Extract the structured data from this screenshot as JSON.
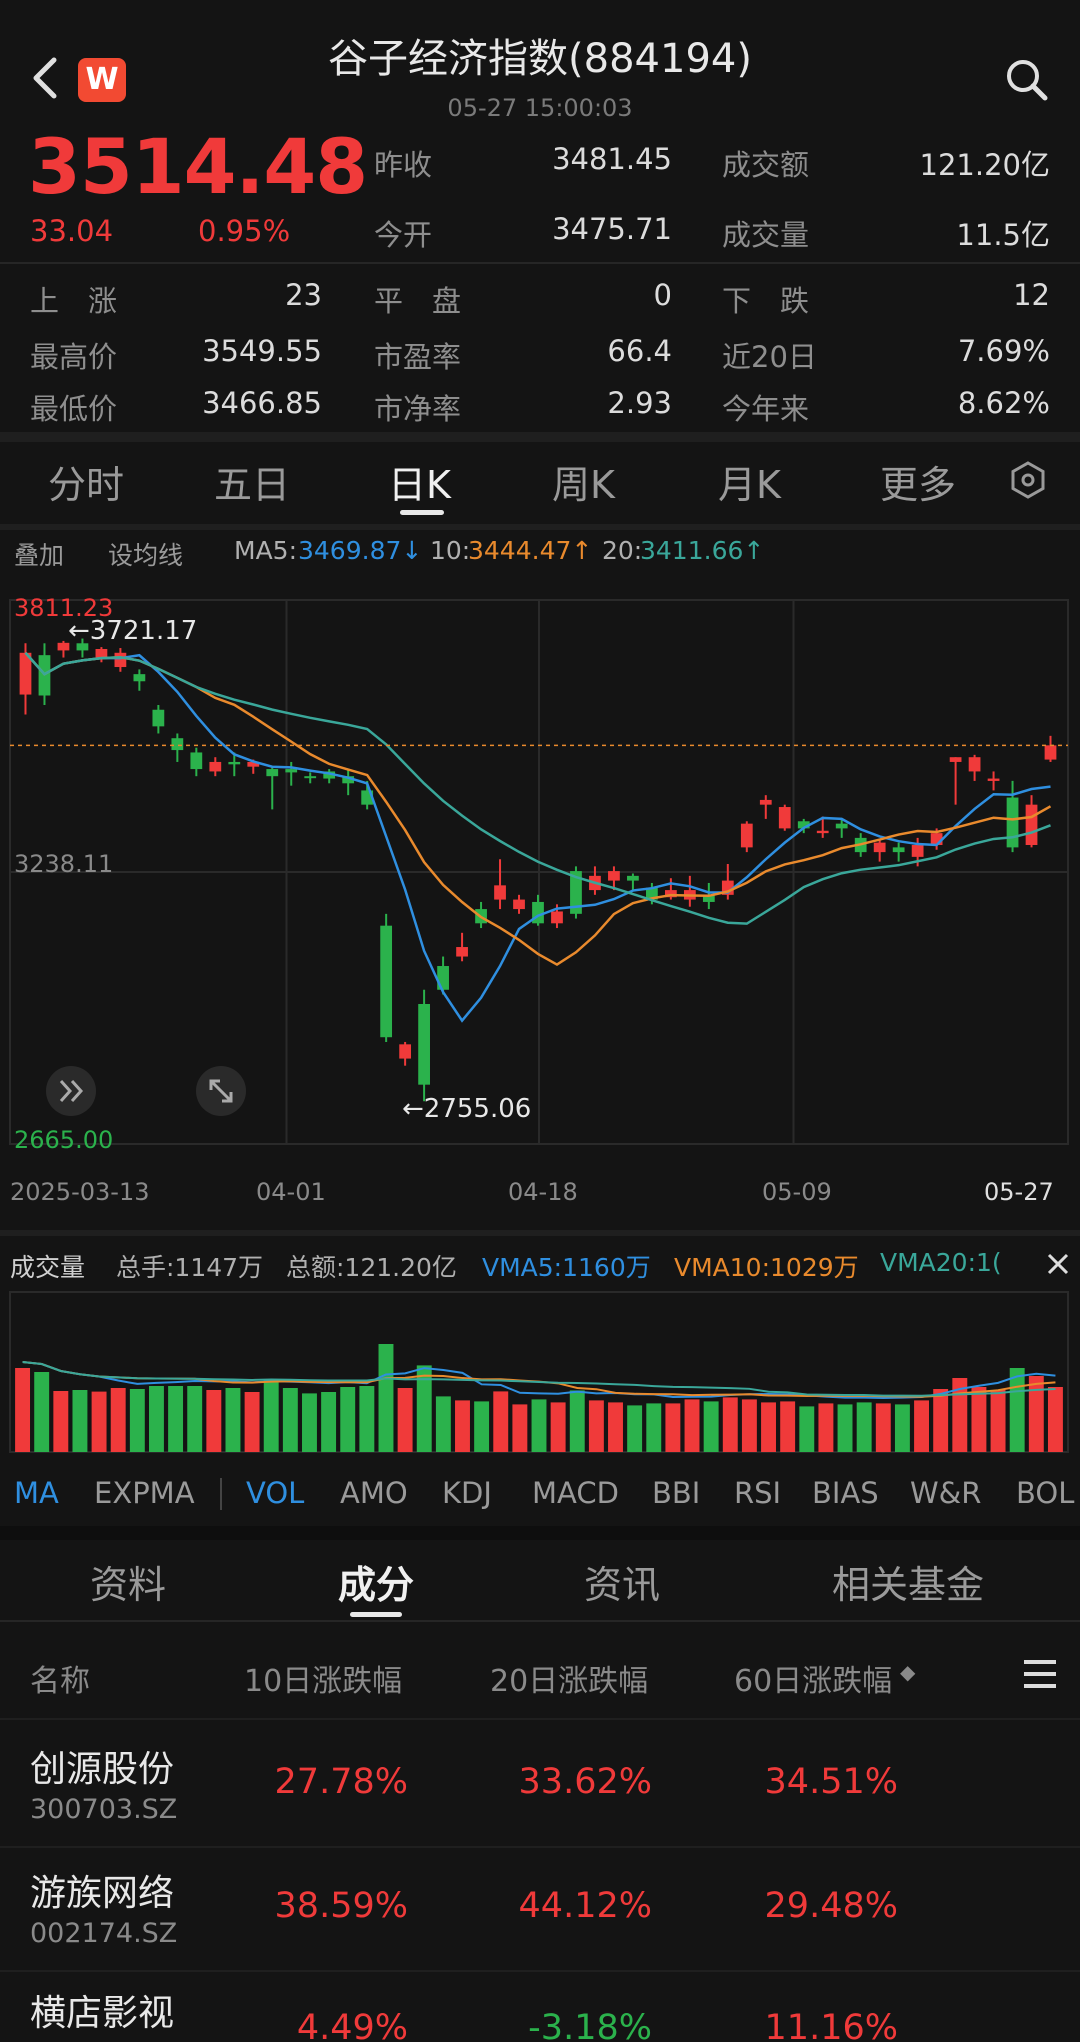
{
  "header": {
    "title": "谷子经济指数(884194)",
    "datetime": "05-27 15:00:03",
    "logo_letter": "W"
  },
  "quote": {
    "price": "3514.48",
    "change": "33.04",
    "change_pct": "0.95%",
    "stats": [
      {
        "label": "昨收",
        "value": "3481.45"
      },
      {
        "label": "成交额",
        "value": "121.20亿"
      },
      {
        "label": "今开",
        "value": "3475.71"
      },
      {
        "label": "成交量",
        "value": "11.5亿"
      },
      {
        "label": "上　涨",
        "value": "23"
      },
      {
        "label": "平　盘",
        "value": "0"
      },
      {
        "label": "下　跌",
        "value": "12"
      },
      {
        "label": "最高价",
        "value": "3549.55"
      },
      {
        "label": "市盈率",
        "value": "66.4"
      },
      {
        "label": "近20日",
        "value": "7.69%"
      },
      {
        "label": "最低价",
        "value": "3466.85"
      },
      {
        "label": "市净率",
        "value": "2.93"
      },
      {
        "label": "今年来",
        "value": "8.62%"
      }
    ]
  },
  "period_tabs": [
    "分时",
    "五日",
    "日K",
    "周K",
    "月K",
    "更多"
  ],
  "active_period": "日K",
  "ma_bar": {
    "overlay": "叠加",
    "set_ma": "设均线",
    "ma5_label": "MA5:",
    "ma5_value": "3469.87↓",
    "ma10_label": "10:",
    "ma10_value": "3444.47↑",
    "ma20_label": "20:",
    "ma20_value": "3411.66↑"
  },
  "chart_labels": {
    "top_price": "3811.23",
    "mid_price": "3238.11",
    "bottom_price": "2665.00",
    "high_marker": "←3721.17",
    "low_marker": "←2755.06"
  },
  "dates": [
    "2025-03-13",
    "04-01",
    "04-18",
    "05-09",
    "05-27"
  ],
  "volume_bar": {
    "title": "成交量",
    "turnover_hands": "总手:1147万",
    "amount": "总额:121.20亿",
    "vma5": "VMA5:1160万",
    "vma10": "VMA10:1029万",
    "vma20": "VMA20:1("
  },
  "indicator_tabs": [
    "MA",
    "EXPMA",
    "VOL",
    "AMO",
    "KDJ",
    "MACD",
    "BBI",
    "RSI",
    "BIAS",
    "W&R",
    "BOL"
  ],
  "bottom_tabs": [
    "资料",
    "成分",
    "资讯",
    "相关基金"
  ],
  "active_bottom_tab": "成分",
  "table": {
    "headers": [
      "名称",
      "10日涨跌幅",
      "20日涨跌幅",
      "60日涨跌幅"
    ],
    "sort_indicator": "◆",
    "rows": [
      {
        "name": "创源股份",
        "code": "300703.SZ",
        "d10": "27.78%",
        "d20": "33.62%",
        "d60": "34.51%"
      },
      {
        "name": "游族网络",
        "code": "002174.SZ",
        "d10": "38.59%",
        "d20": "44.12%",
        "d60": "29.48%"
      },
      {
        "name": "横店影视",
        "code": "",
        "d10": "4.49%",
        "d20": "-3.18%",
        "d60": "11.16%"
      }
    ]
  },
  "colors": {
    "up": "#f03a3a",
    "down": "#2bb24c",
    "ma5": "#2f8fe0",
    "ma10": "#e98a2d",
    "ma20": "#3aa79a",
    "active": "#2f8fe0"
  },
  "chart_data": {
    "type": "candlestick",
    "title": "",
    "ylim": [
      2665.0,
      3811.23
    ],
    "x": [
      "2025-03-13",
      "04-01",
      "04-18",
      "05-09",
      "05-27"
    ],
    "candles": [
      [
        3612,
        3700,
        3570,
        3720
      ],
      [
        3695,
        3610,
        3590,
        3720
      ],
      [
        3705,
        3721,
        3690,
        3725
      ],
      [
        3720,
        3705,
        3690,
        3730
      ],
      [
        3690,
        3708,
        3680,
        3712
      ],
      [
        3670,
        3700,
        3660,
        3710
      ],
      [
        3655,
        3640,
        3620,
        3665
      ],
      [
        3580,
        3545,
        3530,
        3590
      ],
      [
        3520,
        3495,
        3470,
        3530
      ],
      [
        3490,
        3455,
        3440,
        3500
      ],
      [
        3450,
        3470,
        3440,
        3480
      ],
      [
        3470,
        3465,
        3440,
        3490
      ],
      [
        3460,
        3470,
        3445,
        3475
      ],
      [
        3455,
        3440,
        3370,
        3460
      ],
      [
        3455,
        3448,
        3420,
        3470
      ],
      [
        3440,
        3436,
        3425,
        3448
      ],
      [
        3450,
        3435,
        3425,
        3455
      ],
      [
        3440,
        3425,
        3400,
        3455
      ],
      [
        3410,
        3380,
        3370,
        3430
      ],
      [
        3125,
        2890,
        2880,
        3150
      ],
      [
        2845,
        2875,
        2830,
        2880
      ],
      [
        2960,
        2790,
        2755,
        2990
      ],
      [
        3040,
        2990,
        2980,
        3060
      ],
      [
        3060,
        3080,
        3050,
        3110
      ],
      [
        3160,
        3130,
        3120,
        3175
      ],
      [
        3180,
        3210,
        3160,
        3265
      ],
      [
        3160,
        3180,
        3150,
        3190
      ],
      [
        3175,
        3130,
        3125,
        3190
      ],
      [
        3130,
        3155,
        3120,
        3170
      ],
      [
        3240,
        3150,
        3140,
        3250
      ],
      [
        3200,
        3230,
        3190,
        3250
      ],
      [
        3220,
        3240,
        3200,
        3250
      ],
      [
        3230,
        3220,
        3200,
        3235
      ],
      [
        3205,
        3180,
        3170,
        3215
      ],
      [
        3185,
        3200,
        3180,
        3225
      ],
      [
        3180,
        3200,
        3165,
        3230
      ],
      [
        3190,
        3175,
        3160,
        3215
      ],
      [
        3190,
        3220,
        3180,
        3255
      ],
      [
        3290,
        3340,
        3280,
        3345
      ],
      [
        3380,
        3390,
        3350,
        3400
      ],
      [
        3330,
        3375,
        3325,
        3380
      ],
      [
        3345,
        3330,
        3320,
        3350
      ],
      [
        3320,
        3325,
        3310,
        3355
      ],
      [
        3340,
        3330,
        3310,
        3350
      ],
      [
        3310,
        3280,
        3270,
        3320
      ],
      [
        3280,
        3300,
        3260,
        3305
      ],
      [
        3290,
        3280,
        3260,
        3300
      ],
      [
        3270,
        3295,
        3250,
        3310
      ],
      [
        3295,
        3320,
        3285,
        3330
      ],
      [
        3470,
        3480,
        3380,
        3480
      ],
      [
        3450,
        3480,
        3430,
        3485
      ],
      [
        3430,
        3435,
        3410,
        3450
      ],
      [
        3395,
        3290,
        3280,
        3430
      ],
      [
        3295,
        3380,
        3290,
        3400
      ],
      [
        3475,
        3505,
        3470,
        3525
      ]
    ],
    "ma5": "3469.87",
    "ma10": "3444.47",
    "ma20": "3411.66"
  }
}
